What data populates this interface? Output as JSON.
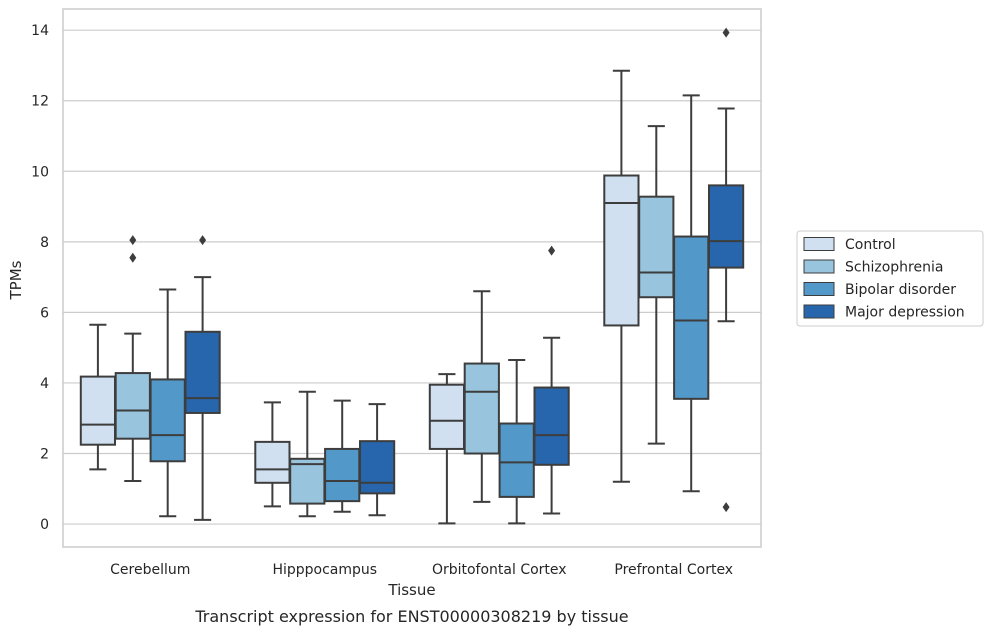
{
  "chart_data": {
    "type": "boxplot",
    "title": "",
    "caption": "Transcript expression for ENST00000308219 by tissue",
    "xlabel": "Tissue",
    "ylabel": "TPMs",
    "ylim": [
      -0.65,
      14.6
    ],
    "yticks": [
      "0",
      "2",
      "4",
      "6",
      "8",
      "10",
      "12",
      "14"
    ],
    "grid": "horizontal",
    "legend_position": "right",
    "categories": [
      "Cerebellum",
      "Hipppocampus",
      "Orbitofontal Cortex",
      "Prefrontal Cortex"
    ],
    "series": [
      {
        "name": "Control",
        "color": "#d0e0f1",
        "boxes": [
          {
            "whislo": 1.55,
            "q1": 2.25,
            "med": 2.82,
            "q3": 4.18,
            "whishi": 5.65,
            "fliers": []
          },
          {
            "whislo": 0.5,
            "q1": 1.17,
            "med": 1.55,
            "q3": 2.33,
            "whishi": 3.45,
            "fliers": []
          },
          {
            "whislo": 0.02,
            "q1": 2.13,
            "med": 2.93,
            "q3": 3.95,
            "whishi": 4.25,
            "fliers": []
          },
          {
            "whislo": 1.2,
            "q1": 5.63,
            "med": 9.1,
            "q3": 9.88,
            "whishi": 12.85,
            "fliers": []
          }
        ]
      },
      {
        "name": "Schizophrenia",
        "color": "#98c4de",
        "boxes": [
          {
            "whislo": 1.22,
            "q1": 2.42,
            "med": 3.22,
            "q3": 4.28,
            "whishi": 5.4,
            "fliers": [
              8.05,
              7.55
            ]
          },
          {
            "whislo": 0.22,
            "q1": 0.58,
            "med": 1.7,
            "q3": 1.85,
            "whishi": 3.75,
            "fliers": []
          },
          {
            "whislo": 0.63,
            "q1": 2.0,
            "med": 3.75,
            "q3": 4.55,
            "whishi": 6.6,
            "fliers": []
          },
          {
            "whislo": 2.28,
            "q1": 6.43,
            "med": 7.13,
            "q3": 9.28,
            "whishi": 11.28,
            "fliers": []
          }
        ]
      },
      {
        "name": "Bipolar disorder",
        "color": "#5298c8",
        "boxes": [
          {
            "whislo": 0.22,
            "q1": 1.78,
            "med": 2.52,
            "q3": 4.1,
            "whishi": 6.65,
            "fliers": []
          },
          {
            "whislo": 0.35,
            "q1": 0.65,
            "med": 1.22,
            "q3": 2.13,
            "whishi": 3.5,
            "fliers": []
          },
          {
            "whislo": 0.02,
            "q1": 0.77,
            "med": 1.75,
            "q3": 2.85,
            "whishi": 4.65,
            "fliers": []
          },
          {
            "whislo": 0.93,
            "q1": 3.55,
            "med": 5.77,
            "q3": 8.15,
            "whishi": 12.15,
            "fliers": []
          }
        ]
      },
      {
        "name": "Major depression",
        "color": "#2766ad",
        "boxes": [
          {
            "whislo": 0.12,
            "q1": 3.15,
            "med": 3.57,
            "q3": 5.45,
            "whishi": 7.0,
            "fliers": [
              8.05
            ]
          },
          {
            "whislo": 0.25,
            "q1": 0.87,
            "med": 1.17,
            "q3": 2.35,
            "whishi": 3.4,
            "fliers": []
          },
          {
            "whislo": 0.3,
            "q1": 1.68,
            "med": 2.52,
            "q3": 3.87,
            "whishi": 5.28,
            "fliers": [
              7.75
            ]
          },
          {
            "whislo": 5.75,
            "q1": 7.27,
            "med": 8.02,
            "q3": 9.6,
            "whishi": 11.78,
            "fliers": [
              13.93,
              0.48
            ]
          }
        ]
      }
    ]
  }
}
